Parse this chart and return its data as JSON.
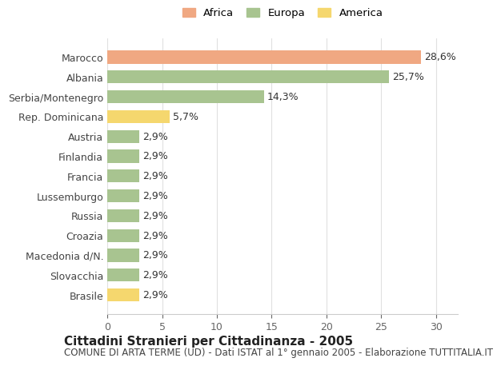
{
  "categories": [
    "Brasile",
    "Slovacchia",
    "Macedonia d/N.",
    "Croazia",
    "Russia",
    "Lussemburgo",
    "Francia",
    "Finlandia",
    "Austria",
    "Rep. Dominicana",
    "Serbia/Montenegro",
    "Albania",
    "Marocco"
  ],
  "values": [
    2.9,
    2.9,
    2.9,
    2.9,
    2.9,
    2.9,
    2.9,
    2.9,
    2.9,
    5.7,
    14.3,
    25.7,
    28.6
  ],
  "colors": [
    "#f5d76e",
    "#a8c490",
    "#a8c490",
    "#a8c490",
    "#a8c490",
    "#a8c490",
    "#a8c490",
    "#a8c490",
    "#a8c490",
    "#f5d76e",
    "#a8c490",
    "#a8c490",
    "#f0a882"
  ],
  "labels": [
    "2,9%",
    "2,9%",
    "2,9%",
    "2,9%",
    "2,9%",
    "2,9%",
    "2,9%",
    "2,9%",
    "2,9%",
    "5,7%",
    "14,3%",
    "25,7%",
    "28,6%"
  ],
  "legend": [
    {
      "label": "Africa",
      "color": "#f0a882"
    },
    {
      "label": "Europa",
      "color": "#a8c490"
    },
    {
      "label": "America",
      "color": "#f5d76e"
    }
  ],
  "xlim": [
    0,
    32
  ],
  "xticks": [
    0,
    5,
    10,
    15,
    20,
    25,
    30
  ],
  "title": "Cittadini Stranieri per Cittadinanza - 2005",
  "subtitle": "COMUNE DI ARTA TERME (UD) - Dati ISTAT al 1° gennaio 2005 - Elaborazione TUTTITALIA.IT",
  "background_color": "#ffffff",
  "grid_color": "#e0e0e0",
  "bar_height": 0.65,
  "label_fontsize": 9,
  "tick_fontsize": 9,
  "title_fontsize": 11,
  "subtitle_fontsize": 8.5
}
